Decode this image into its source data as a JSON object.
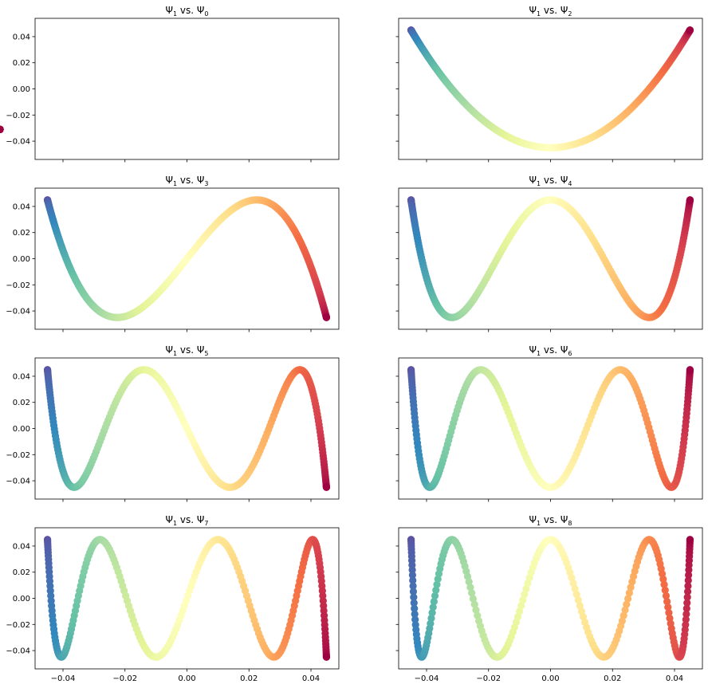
{
  "figure": {
    "colormap": "Spectral",
    "colormap_stops": [
      "#9e0142",
      "#d53e4f",
      "#f46d43",
      "#fdae61",
      "#fee08b",
      "#ffffbf",
      "#e6f598",
      "#abdda4",
      "#66c2a5",
      "#3288bd",
      "#5e4fa2"
    ]
  },
  "chart_data": [
    {
      "type": "scatter",
      "title": "Ψ1 vs. Ψ0",
      "title_main": "Ψ",
      "title_sub1": "1",
      "title_mid": " vs. Ψ",
      "title_sub2": "0",
      "xlim": [
        -0.049,
        0.049
      ],
      "ylim": [
        -0.054,
        0.054
      ],
      "curve": {
        "kind": "flat",
        "y": -0.031
      },
      "xticks": [
        "-0.04",
        "-0.02",
        "0.00",
        "0.02",
        "0.04"
      ],
      "yticks": [
        "0.04",
        "0.02",
        "0.00",
        "-0.02",
        "-0.04"
      ],
      "show_xtick_labels": false,
      "show_ytick_labels": true
    },
    {
      "type": "scatter",
      "title": "Ψ1 vs. Ψ2",
      "title_main": "Ψ",
      "title_sub1": "1",
      "title_mid": " vs. Ψ",
      "title_sub2": "2",
      "xlim": [
        -0.049,
        0.049
      ],
      "ylim": [
        -0.054,
        0.054
      ],
      "curve": {
        "kind": "lissajous",
        "k": 2,
        "amp": 0.045
      },
      "xticks": [
        "-0.04",
        "-0.02",
        "0.00",
        "0.02",
        "0.04"
      ],
      "yticks": [
        "0.04",
        "0.02",
        "0.00",
        "-0.02",
        "-0.04"
      ],
      "show_xtick_labels": false,
      "show_ytick_labels": false
    },
    {
      "type": "scatter",
      "title": "Ψ1 vs. Ψ3",
      "title_main": "Ψ",
      "title_sub1": "1",
      "title_mid": " vs. Ψ",
      "title_sub2": "3",
      "xlim": [
        -0.049,
        0.049
      ],
      "ylim": [
        -0.054,
        0.054
      ],
      "curve": {
        "kind": "lissajous",
        "k": 3,
        "amp": 0.045
      },
      "xticks": [
        "-0.04",
        "-0.02",
        "0.00",
        "0.02",
        "0.04"
      ],
      "yticks": [
        "0.04",
        "0.02",
        "0.00",
        "-0.02",
        "-0.04"
      ],
      "show_xtick_labels": false,
      "show_ytick_labels": true
    },
    {
      "type": "scatter",
      "title": "Ψ1 vs. Ψ4",
      "title_main": "Ψ",
      "title_sub1": "1",
      "title_mid": " vs. Ψ",
      "title_sub2": "4",
      "xlim": [
        -0.049,
        0.049
      ],
      "ylim": [
        -0.054,
        0.054
      ],
      "curve": {
        "kind": "lissajous",
        "k": 4,
        "amp": 0.045
      },
      "xticks": [
        "-0.04",
        "-0.02",
        "0.00",
        "0.02",
        "0.04"
      ],
      "yticks": [
        "0.04",
        "0.02",
        "0.00",
        "-0.02",
        "-0.04"
      ],
      "show_xtick_labels": false,
      "show_ytick_labels": false
    },
    {
      "type": "scatter",
      "title": "Ψ1 vs. Ψ5",
      "title_main": "Ψ",
      "title_sub1": "1",
      "title_mid": " vs. Ψ",
      "title_sub2": "5",
      "xlim": [
        -0.049,
        0.049
      ],
      "ylim": [
        -0.054,
        0.054
      ],
      "curve": {
        "kind": "lissajous",
        "k": 5,
        "amp": 0.045
      },
      "xticks": [
        "-0.04",
        "-0.02",
        "0.00",
        "0.02",
        "0.04"
      ],
      "yticks": [
        "0.04",
        "0.02",
        "0.00",
        "-0.02",
        "-0.04"
      ],
      "show_xtick_labels": false,
      "show_ytick_labels": true
    },
    {
      "type": "scatter",
      "title": "Ψ1 vs. Ψ6",
      "title_main": "Ψ",
      "title_sub1": "1",
      "title_mid": " vs. Ψ",
      "title_sub2": "6",
      "xlim": [
        -0.049,
        0.049
      ],
      "ylim": [
        -0.054,
        0.054
      ],
      "curve": {
        "kind": "lissajous",
        "k": 6,
        "amp": 0.045
      },
      "xticks": [
        "-0.04",
        "-0.02",
        "0.00",
        "0.02",
        "0.04"
      ],
      "yticks": [
        "0.04",
        "0.02",
        "0.00",
        "-0.02",
        "-0.04"
      ],
      "show_xtick_labels": false,
      "show_ytick_labels": false
    },
    {
      "type": "scatter",
      "title": "Ψ1 vs. Ψ7",
      "title_main": "Ψ",
      "title_sub1": "1",
      "title_mid": " vs. Ψ",
      "title_sub2": "7",
      "xlim": [
        -0.049,
        0.049
      ],
      "ylim": [
        -0.054,
        0.054
      ],
      "curve": {
        "kind": "lissajous",
        "k": 7,
        "amp": 0.045
      },
      "xticks": [
        "-0.04",
        "-0.02",
        "0.00",
        "0.02",
        "0.04"
      ],
      "yticks": [
        "0.04",
        "0.02",
        "0.00",
        "-0.02",
        "-0.04"
      ],
      "show_xtick_labels": true,
      "show_ytick_labels": true
    },
    {
      "type": "scatter",
      "title": "Ψ1 vs. Ψ8",
      "title_main": "Ψ",
      "title_sub1": "1",
      "title_mid": " vs. Ψ",
      "title_sub2": "8",
      "xlim": [
        -0.049,
        0.049
      ],
      "ylim": [
        -0.054,
        0.054
      ],
      "curve": {
        "kind": "lissajous",
        "k": 8,
        "amp": 0.045
      },
      "xticks": [
        "-0.04",
        "-0.02",
        "0.00",
        "0.02",
        "0.04"
      ],
      "yticks": [
        "0.04",
        "0.02",
        "0.00",
        "-0.02",
        "-0.04"
      ],
      "show_xtick_labels": true,
      "show_ytick_labels": false
    }
  ]
}
